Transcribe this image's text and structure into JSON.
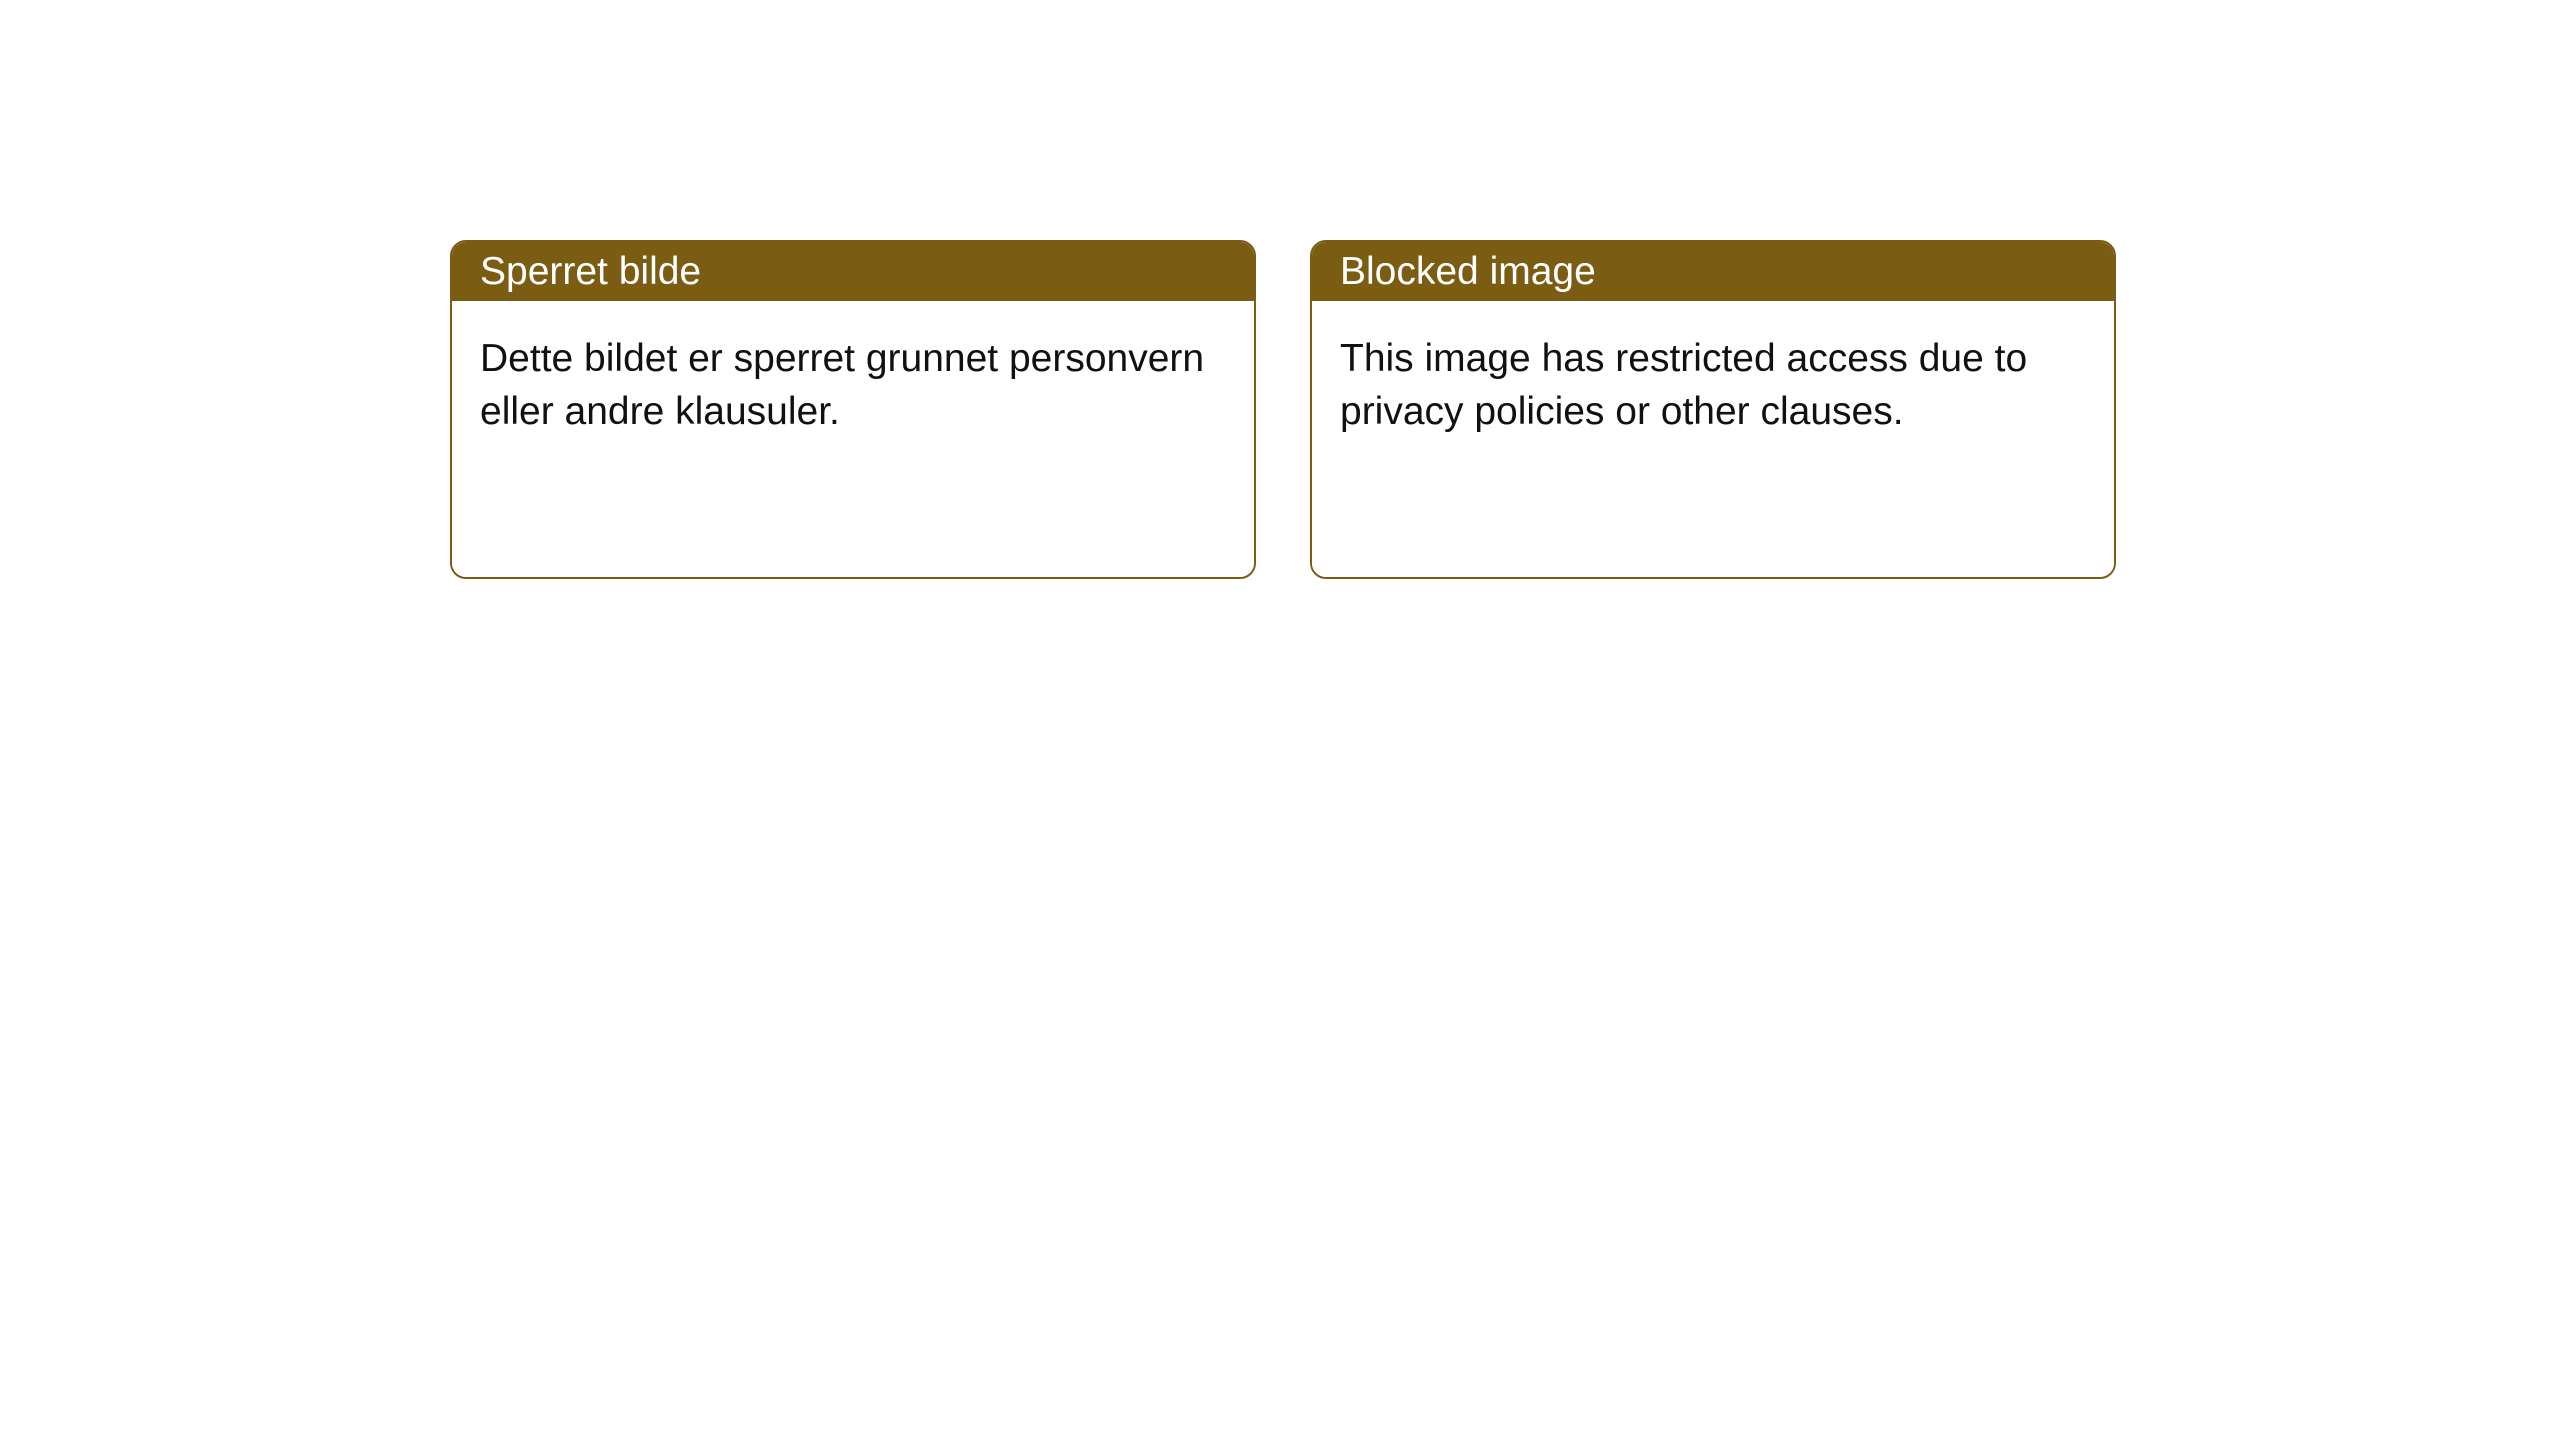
{
  "styling": {
    "background_color": "#ffffff",
    "card_border_color": "#7a5d13",
    "card_border_width": 2,
    "card_border_radius": 16,
    "header_bg_color": "#7a5d13",
    "header_text_color": "#ffffff",
    "body_bg_color": "#ffffff",
    "body_text_color": "#111111",
    "header_font_size": 39,
    "body_font_size": 39
  },
  "cards": [
    {
      "title": "Sperret bilde",
      "body": "Dette bildet er sperret grunnet personvern eller andre klausuler."
    },
    {
      "title": "Blocked image",
      "body": "This image has restricted access due to privacy policies or other clauses."
    }
  ]
}
